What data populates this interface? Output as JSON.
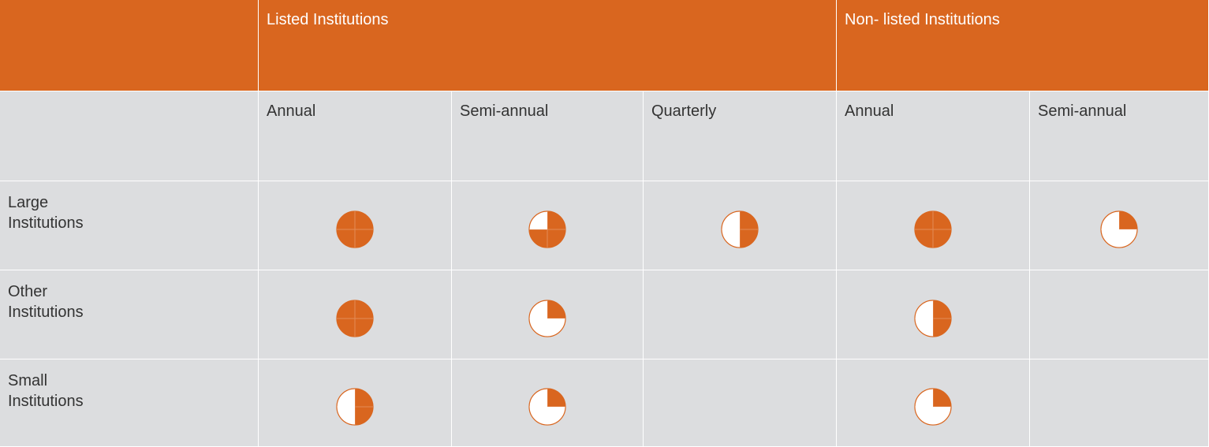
{
  "header": {
    "groups": [
      {
        "label": "Listed Institutions",
        "span": 3
      },
      {
        "label": "Non- listed Institutions",
        "span": 2
      }
    ],
    "columns": [
      "Annual",
      "Semi-annual",
      "Quarterly",
      "Annual",
      "Semi-annual"
    ]
  },
  "rows": [
    {
      "label": "Large Institutions",
      "values": [
        4,
        3,
        2,
        4,
        1
      ]
    },
    {
      "label": "Other Institutions",
      "values": [
        4,
        1,
        null,
        2,
        null
      ]
    },
    {
      "label": "Small Institutions",
      "values": [
        2,
        1,
        null,
        1,
        null
      ]
    }
  ],
  "color": "#d9661f"
}
